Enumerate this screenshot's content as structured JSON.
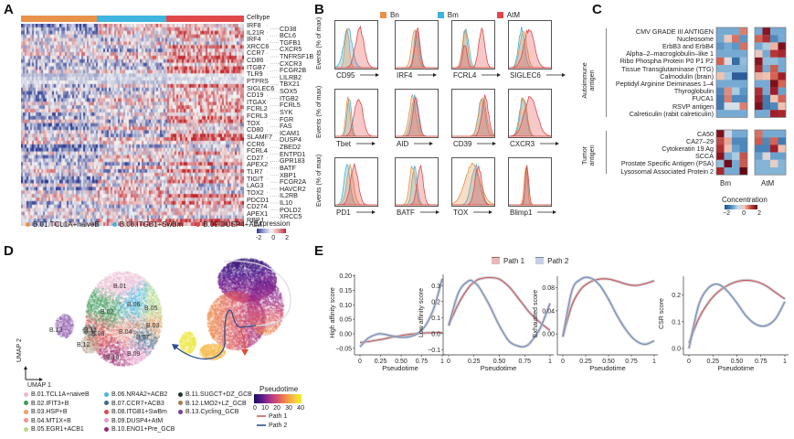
{
  "panels": {
    "A": {
      "letter": "A",
      "celltype_label": "Celltype",
      "celltype_bar": [
        {
          "name": "B.01.TCL1A+naiveB",
          "color": "#E8924A",
          "fraction": 0.34
        },
        {
          "name": "B.08.ITGB1+SwBm",
          "color": "#3FB4DE",
          "fraction": 0.31
        },
        {
          "name": "B.09.DUSP4+AtM",
          "color": "#E0484A",
          "fraction": 0.35
        }
      ],
      "genes_left": [
        "IRF8",
        "IL21R",
        "IRF4",
        "XRCC6",
        "CCR7",
        "CD86",
        "ITGB7",
        "TLR9",
        "PTPRS",
        "SIGLEC6",
        "CD19",
        "ITGAX",
        "FCRL2",
        "FCRL3",
        "TOX",
        "CD80",
        "SLAMF7",
        "CCR6",
        "FCRL4",
        "CD27",
        "APEX2",
        "TLR7",
        "TIGIT",
        "LAG3",
        "TOX2",
        "PDCD1",
        "CD274",
        "APEX1",
        "RBPJ"
      ],
      "genes_right": [
        "CD38",
        "BCL6",
        "TGFB1",
        "CXCR5",
        "TNFRSF1B",
        "CXCR3",
        "FCGR2B",
        "LILRB2",
        "TBX21",
        "SOX5",
        "ITGB2",
        "FCRL5",
        "SYK",
        "FGR",
        "FAS",
        "ICAM1",
        "DUSP4",
        "ZBED2",
        "ENTPD1",
        "GPR183",
        "BATF",
        "XBP1",
        "FCGR2A",
        "HAVCR2",
        "IL2RB",
        "IL10",
        "POLD2",
        "XRCC5"
      ],
      "legend": [
        {
          "label": "B.01.TCL1A+naiveB",
          "color": "#E8924A"
        },
        {
          "label": "B.08.ITGB1+SwBm",
          "color": "#3FB4DE"
        },
        {
          "label": "B.09.DUSP4+AtM",
          "color": "#E0484A"
        }
      ],
      "expression_legend": {
        "title": "Expression",
        "ticks": [
          "-2",
          "0",
          "2"
        ],
        "low_color": "#2B3990",
        "mid_color": "#F5F5F5",
        "high_color": "#C1272D"
      }
    },
    "B": {
      "letter": "B",
      "legend": [
        {
          "label": "Bn",
          "color": "#E8924A"
        },
        {
          "label": "Bm",
          "color": "#3FB4DE"
        },
        {
          "label": "AtM",
          "color": "#E0484A"
        }
      ],
      "y_label": "Events (% of max)",
      "rows": [
        [
          "CD95",
          "IRF4",
          "FCRL4",
          "SIGLEC6"
        ],
        [
          "Tbet",
          "AID",
          "CD39",
          "CXCR3"
        ],
        [
          "PD1",
          "BATF",
          "TOX",
          "Blimp1"
        ]
      ]
    },
    "C": {
      "letter": "C",
      "groups": [
        {
          "name": "Autoimmune antigen",
          "items": [
            "CMV GRADE III ANTIGEN",
            "Nucleosome",
            "ErbB3 and ErbB4",
            "Alpha–2–macroglobulin–like 1",
            "Ribo Phospha Protein P0 P1 P2",
            "Tissue Transglutaminase (TTG)",
            "Calmodulin (brain)",
            "Peptidyl Arginine Deiminases 1–4",
            "Thyroglobulin",
            "FUCA1",
            "RSVP antigen",
            "Calreticulin (rabit calreticulin)"
          ]
        },
        {
          "name": "Tumor antigen",
          "items": [
            "CA50",
            "CA27–29",
            "Cytokeratin 19 Ag",
            "SCCA",
            "Prostate Specific Antigen (PSA)",
            "Lysosomal Associated Protein 2"
          ]
        }
      ],
      "columns": [
        "Bm",
        "AtM"
      ],
      "heat_values": {
        "Bm_auto": [
          [
            -0.8,
            -0.8,
            -0.8,
            1.0
          ],
          [
            -0.8,
            0.4,
            1.1,
            -1.0
          ],
          [
            -1.0,
            -0.8,
            -1.0,
            1.1
          ],
          [
            -0.8,
            -0.8,
            -0.8,
            -0.8
          ],
          [
            1.2,
            0.1,
            -1.6,
            -0.6
          ],
          [
            -0.7,
            -0.7,
            -0.7,
            -0.7
          ],
          [
            0.5,
            -0.5,
            -1.8,
            -1.8
          ],
          [
            -0.8,
            -0.8,
            -0.8,
            -0.8
          ],
          [
            -1.2,
            0.9,
            -0.4,
            -1.0
          ],
          [
            -1.4,
            1.0,
            -1.2,
            -1.2
          ],
          [
            -1.4,
            0.0,
            0.0,
            1.0
          ],
          [
            -0.8,
            -0.8,
            -0.8,
            -0.8
          ]
        ],
        "AtM_auto": [
          [
            -0.8,
            2.2,
            -0.8,
            -0.8
          ],
          [
            1.2,
            1.8,
            -1.2,
            -0.8
          ],
          [
            -0.8,
            -0.4,
            0.6,
            2.3
          ],
          [
            0.4,
            -0.8,
            1.7,
            1.9
          ],
          [
            2.2,
            -0.6,
            -0.6,
            -0.8
          ],
          [
            1.8,
            -0.8,
            1.3,
            -0.8
          ],
          [
            0.6,
            0.5,
            1.2,
            2.0
          ],
          [
            -0.8,
            -0.8,
            2.3,
            1.2
          ],
          [
            1.8,
            -0.8,
            2.0,
            -0.9
          ],
          [
            2.0,
            -1.4,
            0.5,
            1.2
          ],
          [
            2.3,
            -1.4,
            -1.2,
            0.5
          ],
          [
            -0.8,
            -0.8,
            2.0,
            1.9
          ]
        ],
        "Bm_tumor": [
          [
            2.3,
            -0.1,
            -0.8,
            -0.8
          ],
          [
            1.5,
            0.7,
            -1.2,
            -1.2
          ],
          [
            1.8,
            0.5,
            -0.9,
            -1.2
          ],
          [
            2.2,
            -0.8,
            -0.4,
            1.4
          ],
          [
            -0.6,
            2.4,
            -0.8,
            1.3
          ],
          [
            1.9,
            -0.8,
            -0.8,
            2.5
          ]
        ],
        "AtM_tumor": [
          [
            1.1,
            -0.8,
            -0.8,
            -0.8
          ],
          [
            1.3,
            -1.2,
            1.2,
            -1.4
          ],
          [
            -1.3,
            -1.3,
            2.0,
            0.5
          ],
          [
            -0.9,
            0.2,
            -0.9,
            -0.9
          ],
          [
            -0.7,
            -0.7,
            0.3,
            -0.7
          ],
          [
            -0.7,
            -0.7,
            -0.7,
            -0.7
          ]
        ]
      },
      "concentration_legend": {
        "title": "Concentration",
        "ticks": [
          "−2",
          "0",
          "2"
        ]
      }
    },
    "D": {
      "letter": "D",
      "cluster_labels": [
        "B.01",
        "B.02",
        "B.06",
        "B.05",
        "B.03",
        "B.04",
        "B.07",
        "B.08",
        "B.09",
        "B.10",
        "B.11",
        "B.12",
        "B.13"
      ],
      "axis_x": "UMAP 1",
      "axis_y": "UMAP 2",
      "legend": [
        {
          "label": "B.01.TCL1A+naiveB",
          "color": "#E9B7CF"
        },
        {
          "label": "B.02.IFIT3+B",
          "color": "#3E9B5A"
        },
        {
          "label": "B.03.HSP+B",
          "color": "#E8A066"
        },
        {
          "label": "B.04.MT1X+B",
          "color": "#E89A8E"
        },
        {
          "label": "B.05.EGR1+ACB1",
          "color": "#B8D98A"
        },
        {
          "label": "B.06.NR4A2+ACB2",
          "color": "#46B7E0"
        },
        {
          "label": "B.07.CCR7+ACB3",
          "color": "#3C6E8C"
        },
        {
          "label": "B.08.ITGB1+SwBm",
          "color": "#E0484A"
        },
        {
          "label": "B.09.DUSP4+AtM",
          "color": "#E59ACB"
        },
        {
          "label": "B.10.ENO1+Pre_GCB",
          "color": "#9C2A6E"
        },
        {
          "label": "B.11.SUGCT+DZ_GCB",
          "color": "#1E3A25"
        },
        {
          "label": "B.12.LMO2+LZ_GCB",
          "color": "#A87A50"
        },
        {
          "label": "B.13.Cycling_GCB",
          "color": "#7A3D9A"
        }
      ],
      "pseudotime_legend": {
        "title": "Pseudotime",
        "ticks": [
          "0",
          "10",
          "20",
          "30",
          "40"
        ]
      },
      "path_legend": [
        {
          "label": "Path 1",
          "color": "#D9807C"
        },
        {
          "label": "Path 2",
          "color": "#5874A8"
        }
      ]
    },
    "E": {
      "letter": "E",
      "legend": [
        {
          "label": "Path 1",
          "color": "#C8595B"
        },
        {
          "label": "Path 2",
          "color": "#6D8CB8"
        }
      ]
    }
  },
  "chart_data": [
    {
      "type": "line",
      "title": "",
      "xlabel": "Pseudotime",
      "ylabel": "High affinity score",
      "x_ticks": [
        "0",
        "0.25",
        "0.50",
        "0.75",
        "1"
      ],
      "y_ticks": [
        "−0.05",
        "0.00",
        "0.05",
        "0.10",
        "0.15",
        "0.20"
      ],
      "xlim": [
        0,
        1
      ],
      "ylim": [
        -0.06,
        0.205
      ],
      "x": [
        0,
        0.1,
        0.2,
        0.25,
        0.3,
        0.4,
        0.5,
        0.6,
        0.7,
        0.8,
        0.9,
        1.0
      ],
      "series": [
        {
          "name": "Path 1",
          "values": [
            -0.03,
            -0.027,
            -0.022,
            -0.02,
            -0.017,
            -0.011,
            -0.006,
            -0.002,
            0.001,
            0.003,
            0.004,
            0.004
          ]
        },
        {
          "name": "Path 2",
          "values": [
            -0.045,
            -0.015,
            -0.002,
            0.0,
            -0.002,
            -0.008,
            -0.012,
            -0.01,
            0.001,
            0.03,
            0.09,
            0.19
          ]
        }
      ]
    },
    {
      "type": "line",
      "title": "",
      "xlabel": "Pseudotime",
      "ylabel": "Low affinity score",
      "x_ticks": [
        "0",
        "0.25",
        "0.50",
        "0.75",
        "1"
      ],
      "y_ticks": [
        "−0.1",
        "0.0",
        "0.1",
        "0.2",
        "0.3"
      ],
      "xlim": [
        0,
        1
      ],
      "ylim": [
        -0.11,
        0.37
      ],
      "x": [
        0,
        0.1,
        0.2,
        0.25,
        0.3,
        0.4,
        0.5,
        0.6,
        0.7,
        0.75,
        0.8,
        0.9,
        1.0
      ],
      "series": [
        {
          "name": "Path 1",
          "values": [
            0.05,
            0.19,
            0.29,
            0.32,
            0.34,
            0.35,
            0.34,
            0.29,
            0.21,
            0.17,
            0.13,
            0.07,
            0.02
          ]
        },
        {
          "name": "Path 2",
          "values": [
            0.05,
            0.26,
            0.33,
            0.32,
            0.29,
            0.18,
            0.05,
            -0.05,
            -0.08,
            -0.08,
            -0.06,
            0.03,
            0.19
          ]
        }
      ]
    },
    {
      "type": "line",
      "title": "",
      "xlabel": "Pseudotime",
      "ylabel": "Exhausted score",
      "x_ticks": [
        "0",
        "0.25",
        "0.50",
        "0.75",
        "1"
      ],
      "y_ticks": [
        "0.00",
        "0.04",
        "0.08"
      ],
      "xlim": [
        0,
        1
      ],
      "ylim": [
        -0.03,
        0.1
      ],
      "x": [
        0,
        0.1,
        0.2,
        0.3,
        0.4,
        0.5,
        0.6,
        0.7,
        0.8,
        0.9,
        1.0
      ],
      "series": [
        {
          "name": "Path 1",
          "values": [
            -0.005,
            0.05,
            0.078,
            0.09,
            0.095,
            0.095,
            0.091,
            0.086,
            0.084,
            0.087,
            0.092
          ]
        },
        {
          "name": "Path 2",
          "values": [
            -0.005,
            0.075,
            0.095,
            0.097,
            0.085,
            0.06,
            0.03,
            0.005,
            -0.012,
            -0.018,
            -0.012
          ]
        }
      ]
    },
    {
      "type": "line",
      "title": "",
      "xlabel": "Pseudotime",
      "ylabel": "CSR score",
      "x_ticks": [
        "0",
        "0.25",
        "0.50",
        "0.75",
        "1"
      ],
      "y_ticks": [
        "0.0",
        "0.1",
        "0.2"
      ],
      "xlim": [
        0,
        1
      ],
      "ylim": [
        -0.01,
        0.27
      ],
      "x": [
        0,
        0.1,
        0.2,
        0.3,
        0.4,
        0.5,
        0.6,
        0.7,
        0.8,
        0.9,
        1.0
      ],
      "series": [
        {
          "name": "Path 1",
          "values": [
            0.02,
            0.11,
            0.17,
            0.21,
            0.235,
            0.25,
            0.255,
            0.25,
            0.235,
            0.21,
            0.185
          ]
        },
        {
          "name": "Path 2",
          "values": [
            0.0,
            0.16,
            0.225,
            0.24,
            0.215,
            0.17,
            0.12,
            0.09,
            0.085,
            0.11,
            0.175
          ]
        }
      ]
    }
  ]
}
